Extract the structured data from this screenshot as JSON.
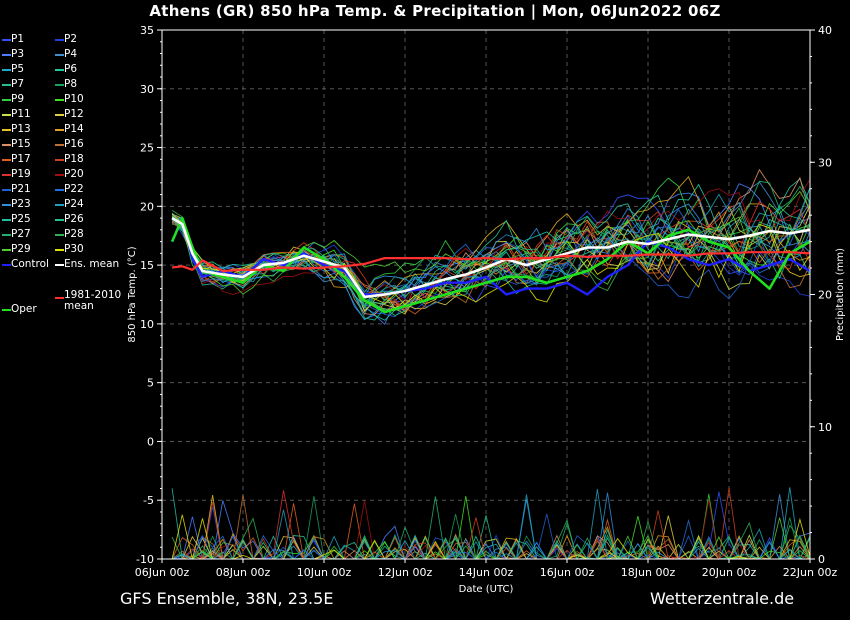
{
  "title": "Athens  (GR)  850 hPa Temp. & Precipitation | Mon, 06Jun2022 06Z",
  "footer": {
    "left": "GFS Ensemble, 38N, 23.5E",
    "right": "Wetterzentrale.de"
  },
  "legend": [
    {
      "label": "P1",
      "color": "#3050ff"
    },
    {
      "label": "P2",
      "color": "#2040e0"
    },
    {
      "label": "P3",
      "color": "#4a80ff"
    },
    {
      "label": "P4",
      "color": "#3f8fd0"
    },
    {
      "label": "P5",
      "color": "#20a8c8"
    },
    {
      "label": "P6",
      "color": "#20c8a0"
    },
    {
      "label": "P7",
      "color": "#20c090"
    },
    {
      "label": "P8",
      "color": "#18a060"
    },
    {
      "label": "P9",
      "color": "#30d040"
    },
    {
      "label": "P10",
      "color": "#40e020"
    },
    {
      "label": "P11",
      "color": "#c8e040"
    },
    {
      "label": "P12",
      "color": "#e0d040"
    },
    {
      "label": "P13",
      "color": "#e8c020"
    },
    {
      "label": "P14",
      "color": "#e0a020"
    },
    {
      "label": "P15",
      "color": "#e09060"
    },
    {
      "label": "P16",
      "color": "#c07030"
    },
    {
      "label": "P17",
      "color": "#e06020"
    },
    {
      "label": "P18",
      "color": "#d04020"
    },
    {
      "label": "P19",
      "color": "#e03030"
    },
    {
      "label": "P20",
      "color": "#a01010"
    },
    {
      "label": "P21",
      "color": "#2060d0"
    },
    {
      "label": "P22",
      "color": "#2070e0"
    },
    {
      "label": "P23",
      "color": "#3090e0"
    },
    {
      "label": "P24",
      "color": "#20a0c0"
    },
    {
      "label": "P25",
      "color": "#20c0a0"
    },
    {
      "label": "P26",
      "color": "#20c090"
    },
    {
      "label": "P27",
      "color": "#20b070"
    },
    {
      "label": "P28",
      "color": "#30b050"
    },
    {
      "label": "P29",
      "color": "#50d030"
    },
    {
      "label": "P30",
      "color": "#e0e000"
    },
    {
      "label": "Control",
      "color": "#2020ff"
    },
    {
      "label": "Ens. mean",
      "color": "#ffffff"
    },
    {
      "label": "Oper",
      "color": "#20e020"
    },
    {
      "label": "1981-2010 mean",
      "color": "#ff3030"
    }
  ],
  "chart_data": {
    "type": "line",
    "title": "Athens  (GR)  850 hPa Temp. & Precipitation | Mon, 06Jun2022 06Z",
    "xlabel": "Date (UTC)",
    "ylabel": "850 hPa Temp. (°C)",
    "y2label": "Precipitation (mm)",
    "xtick_labels": [
      "06Jun 00z",
      "08Jun 00z",
      "10Jun 00z",
      "12Jun 00z",
      "14Jun 00z",
      "16Jun 00z",
      "18Jun 00z",
      "20Jun 00z",
      "22Jun 00z"
    ],
    "xlim_days": [
      0,
      16
    ],
    "ylim": [
      -10,
      35
    ],
    "yticks": [
      -10,
      -5,
      0,
      5,
      10,
      15,
      20,
      25,
      30,
      35
    ],
    "y2lim": [
      0,
      40
    ],
    "y2ticks": [
      0,
      10,
      20,
      30,
      40
    ],
    "grid": true,
    "legend_position": "left",
    "series": [
      {
        "name": "Control",
        "color": "#2020ff",
        "width": 2.4,
        "x": [
          0.25,
          0.5,
          0.75,
          1,
          1.5,
          2,
          2.5,
          3,
          3.5,
          4,
          4.5,
          5,
          5.5,
          6,
          6.5,
          7,
          7.5,
          8,
          8.5,
          9,
          9.5,
          10,
          10.5,
          11,
          11.5,
          12,
          12.5,
          13,
          13.5,
          14,
          14.5,
          15,
          15.5,
          16
        ],
        "y": [
          17.0,
          19.0,
          15.5,
          14.0,
          14.5,
          14.0,
          15.5,
          15.0,
          16.0,
          15.0,
          14.5,
          12.5,
          12.5,
          12.8,
          13.0,
          13.5,
          13.5,
          14.0,
          12.5,
          13.0,
          13.0,
          13.5,
          12.5,
          14.0,
          15.0,
          17.0,
          16.5,
          15.5,
          15.0,
          15.5,
          14.5,
          15.0,
          15.5,
          14.5
        ]
      },
      {
        "name": "Oper",
        "color": "#20e020",
        "width": 2.6,
        "x": [
          0.25,
          0.5,
          0.75,
          1,
          1.5,
          2,
          2.5,
          3,
          3.5,
          4,
          4.5,
          5,
          5.5,
          6,
          6.5,
          7,
          7.5,
          8,
          8.5,
          9,
          9.5,
          10,
          10.5,
          11,
          11.5,
          12,
          12.5,
          13,
          13.5,
          14,
          14.5,
          15,
          15.5,
          16
        ],
        "y": [
          17.0,
          19.0,
          16.5,
          14.5,
          14.0,
          13.5,
          15.0,
          14.5,
          16.5,
          15.5,
          14.0,
          12.0,
          11.0,
          11.5,
          12.0,
          12.5,
          13.0,
          13.5,
          14.0,
          14.0,
          13.5,
          14.0,
          14.5,
          15.5,
          17.0,
          16.0,
          17.5,
          18.0,
          17.0,
          16.5,
          14.5,
          13.0,
          16.0,
          17.0
        ]
      },
      {
        "name": "Ens. mean",
        "color": "#ffffff",
        "width": 2.6,
        "x": [
          0.25,
          0.5,
          0.75,
          1,
          1.5,
          2,
          2.5,
          3,
          3.5,
          4,
          4.5,
          5,
          5.5,
          6,
          6.5,
          7,
          7.5,
          8,
          8.5,
          9,
          9.5,
          10,
          10.5,
          11,
          11.5,
          12,
          12.5,
          13,
          13.5,
          14,
          14.5,
          15,
          15.5,
          16
        ],
        "y": [
          19.0,
          18.5,
          16.0,
          14.5,
          14.2,
          14.0,
          15.0,
          15.2,
          15.8,
          15.3,
          14.8,
          12.3,
          12.5,
          12.8,
          13.3,
          13.8,
          14.2,
          14.8,
          15.5,
          15.0,
          15.5,
          16.0,
          16.5,
          16.5,
          17.0,
          16.8,
          17.2,
          17.6,
          17.4,
          17.2,
          17.5,
          17.9,
          17.7,
          18.0
        ]
      },
      {
        "name": "1981-2010 mean",
        "color": "#ff3030",
        "width": 2.2,
        "x": [
          0.25,
          0.5,
          0.75,
          1,
          1.5,
          2,
          2.5,
          3,
          3.5,
          4,
          4.5,
          5,
          5.5,
          6,
          6.5,
          7,
          7.5,
          8,
          8.5,
          9,
          9.5,
          10,
          10.5,
          11,
          11.5,
          12,
          12.5,
          13,
          13.5,
          14,
          14.5,
          15,
          15.5,
          16
        ],
        "y": [
          14.8,
          14.9,
          14.6,
          15.4,
          14.5,
          14.6,
          14.6,
          14.8,
          14.7,
          14.8,
          14.9,
          15.1,
          15.6,
          15.6,
          15.6,
          15.6,
          15.5,
          15.6,
          15.5,
          15.6,
          15.6,
          15.8,
          15.7,
          15.8,
          15.8,
          15.9,
          15.9,
          15.8,
          16.0,
          16.0,
          16.1,
          16.1,
          16.1,
          16.0
        ]
      }
    ]
  }
}
